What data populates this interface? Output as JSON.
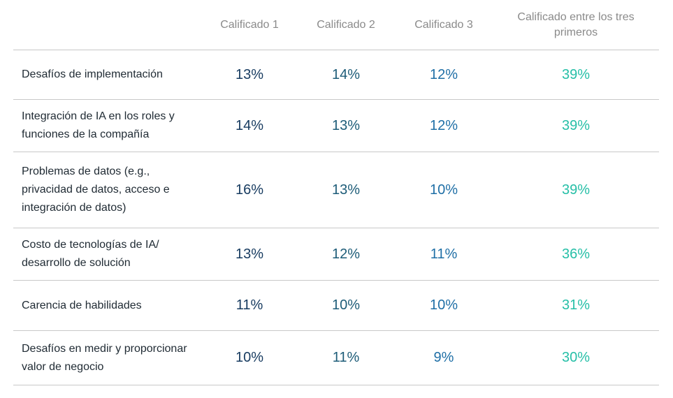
{
  "chart_data": {
    "type": "table",
    "columns": [
      "Calificado 1",
      "Calificado 2",
      "Calificado 3",
      "Calificado entre los tres   primeros"
    ],
    "rows": [
      {
        "label": "Desafíos de implementación",
        "values": [
          "13%",
          "14%",
          "12%",
          "39%"
        ]
      },
      {
        "label": "Integración de IA en los roles y funciones de la compañía",
        "values": [
          "14%",
          "13%",
          "12%",
          "39%"
        ]
      },
      {
        "label": "Problemas de datos (e.g., privacidad de datos, acceso e integración de datos)",
        "values": [
          "16%",
          "13%",
          "10%",
          "39%"
        ]
      },
      {
        "label": "Costo de tecnologías de IA/ desarrollo de solución",
        "values": [
          "13%",
          "12%",
          "11%",
          "36%"
        ]
      },
      {
        "label": "Carencia de habilidades",
        "values": [
          "11%",
          "10%",
          "10%",
          "31%"
        ]
      },
      {
        "label": "Desafíos en medir y proporcionar valor de negocio",
        "values": [
          "10%",
          "11%",
          "9%",
          "30%"
        ]
      }
    ],
    "colors": {
      "col1": "#163a5f",
      "col2": "#1d5c78",
      "col3": "#1f6fa6",
      "col4": "#26bfa7",
      "header": "#8a8a8a",
      "label": "#1f2a33",
      "rule": "#c8c8c8"
    }
  }
}
